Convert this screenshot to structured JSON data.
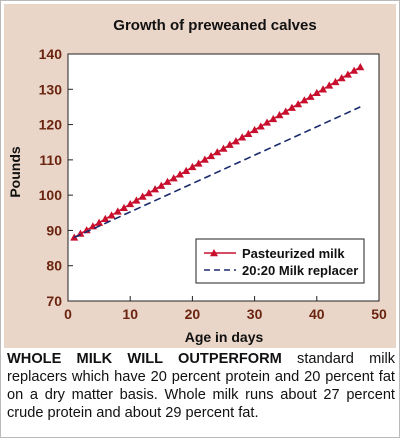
{
  "chart_data": {
    "type": "line",
    "title": "Growth of preweaned calves",
    "xlabel": "Age in days",
    "ylabel": "Pounds",
    "xlim": [
      0,
      50
    ],
    "ylim": [
      70,
      140
    ],
    "xticks": [
      0,
      10,
      20,
      30,
      40,
      50
    ],
    "yticks": [
      70,
      80,
      90,
      100,
      110,
      120,
      130,
      140
    ],
    "grid": false,
    "legend_position": "bottom-right",
    "series": [
      {
        "name": "Pasteurized milk",
        "color": "#c8102e",
        "marker": "triangle",
        "line_style": "solid",
        "x": [
          1,
          2,
          3,
          4,
          5,
          6,
          7,
          8,
          9,
          10,
          11,
          12,
          13,
          14,
          15,
          16,
          17,
          18,
          19,
          20,
          21,
          22,
          23,
          24,
          25,
          26,
          27,
          28,
          29,
          30,
          31,
          32,
          33,
          34,
          35,
          36,
          37,
          38,
          39,
          40,
          41,
          42,
          43,
          44,
          45,
          46,
          47
        ],
        "values": [
          88.0,
          89.1,
          90.1,
          91.2,
          92.2,
          93.3,
          94.3,
          95.4,
          96.4,
          97.5,
          98.5,
          99.6,
          100.6,
          101.7,
          102.7,
          103.8,
          104.8,
          105.9,
          106.9,
          108.0,
          109.0,
          110.1,
          111.1,
          112.2,
          113.2,
          114.3,
          115.3,
          116.4,
          117.4,
          118.5,
          119.5,
          120.6,
          121.6,
          122.7,
          123.7,
          124.8,
          125.8,
          126.9,
          127.9,
          129.0,
          130.0,
          131.1,
          132.1,
          133.2,
          134.2,
          135.3,
          136.3
        ]
      },
      {
        "name": "20:20 Milk replacer",
        "color": "#1a2b6d",
        "marker": "none",
        "line_style": "dashed",
        "x": [
          1,
          47
        ],
        "values": [
          88.0,
          125.0
        ]
      }
    ]
  },
  "caption": {
    "lead": "WHOLE MILK WILL OUTPERFORM",
    "body": " standard milk replacers which have 20 percent protein and 20 percent fat on a dry matter basis. Whole milk runs about 27 percent crude protein and about 29 percent fat."
  },
  "colors": {
    "panel_background": "#e9d6c8",
    "plot_background": "#ffffff",
    "axis_text": "#6b2410"
  }
}
